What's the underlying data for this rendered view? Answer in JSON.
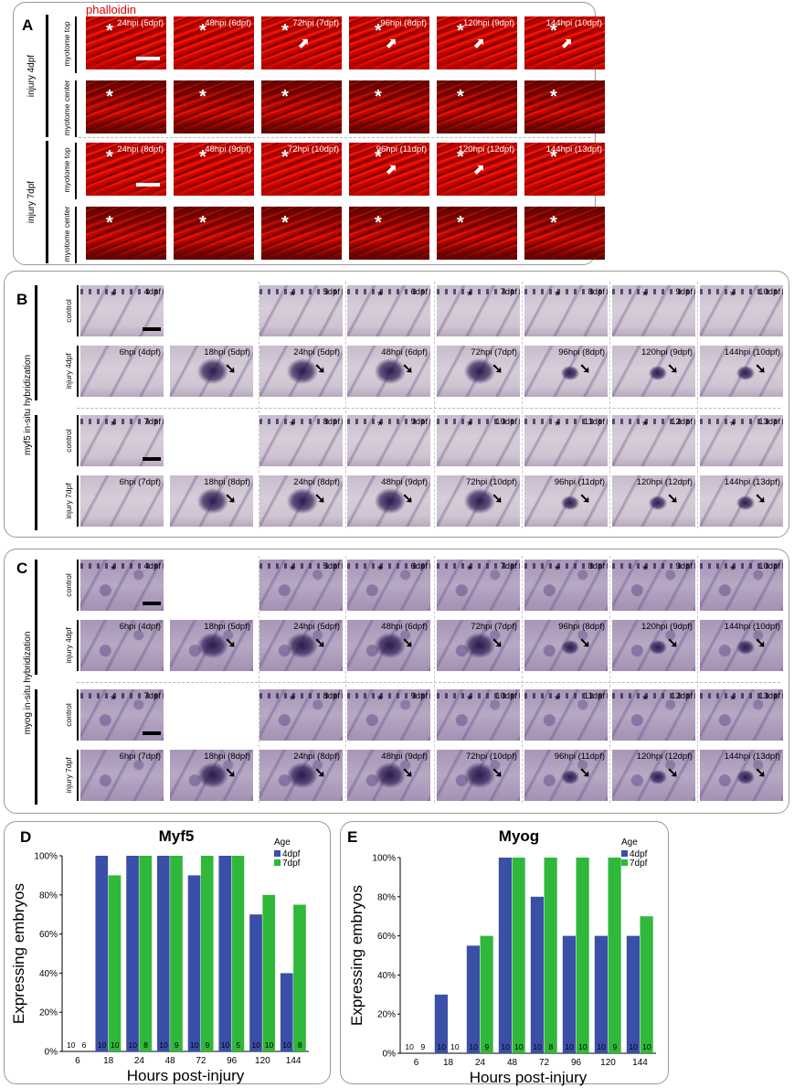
{
  "panel_a": {
    "letter": "A",
    "stain": "phalloidin",
    "stain_color": "#e00000",
    "groups": [
      {
        "label": "injury 4dpf",
        "rows": [
          {
            "label": "myotome top",
            "tiles": [
              "24hpi (5dpf)",
              "48hpi (6dpf)",
              "72hpi (7dpf)",
              "96hpi (8dpf)",
              "120hpi (9dpf)",
              "144hpi (10dpf)"
            ]
          },
          {
            "label": "myotome center",
            "tiles": [
              "",
              "",
              "",
              "",
              "",
              ""
            ]
          }
        ]
      },
      {
        "label": "injury 7dpf",
        "rows": [
          {
            "label": "myotome top",
            "tiles": [
              "24hpi (8dpf)",
              "48hpi (9dpf)",
              "72hpi (10dpf)",
              "96hpi (11dpf)",
              "120hpi (12dpf)",
              "144hpi (13dpf)"
            ]
          },
          {
            "label": "myotome center",
            "tiles": [
              "",
              "",
              "",
              "",
              "",
              ""
            ]
          }
        ]
      }
    ]
  },
  "panel_b": {
    "letter": "B",
    "side_label": "myf5 in-situ hybridization",
    "rows": [
      {
        "label": "control",
        "tiles": [
          "4dpf",
          null,
          "5dpf",
          "6dpf",
          "7dpf",
          "8dpf",
          "9dpf",
          "10dpf"
        ]
      },
      {
        "label": "injury 4dpf",
        "tiles": [
          "6hpi (4dpf)",
          "18hpi (5dpf)",
          "24hpi (5dpf)",
          "48hpi (6dpf)",
          "72hpi (7dpf)",
          "96hpi (8dpf)",
          "120hpi (9dpf)",
          "144hpi (10dpf)"
        ]
      },
      {
        "label": "control",
        "tiles": [
          "7dpf",
          null,
          "8dpf",
          "9dpf",
          "10dpf",
          "11dpf",
          "12dpf",
          "13dpf"
        ]
      },
      {
        "label": "injury 7dpf",
        "tiles": [
          "6hpi (7dpf)",
          "18hpi (8dpf)",
          "24hpi (8dpf)",
          "48hpi (9dpf)",
          "72hpi (10dpf)",
          "96hpi (11dpf)",
          "120hpi (12dpf)",
          "144hpi (13dpf)"
        ]
      }
    ]
  },
  "panel_c": {
    "letter": "C",
    "side_label": "myog in-situ hybridization",
    "rows": [
      {
        "label": "control",
        "tiles": [
          "4dpf",
          null,
          "5dpf",
          "6dpf",
          "7dpf",
          "8dpf",
          "9dpf",
          "10dpf"
        ]
      },
      {
        "label": "injury 4dpf",
        "tiles": [
          "6hpi (4dpf)",
          "18hpi (5dpf)",
          "24hpi (5dpf)",
          "48hpi (6dpf)",
          "72hpi (7dpf)",
          "96hpi (8dpf)",
          "120hpi (9dpf)",
          "144hpi (10dpf)"
        ]
      },
      {
        "label": "control",
        "tiles": [
          "7dpf",
          null,
          "8dpf",
          "9dpf",
          "10dpf",
          "11dpf",
          "12dpf",
          "13dpf"
        ]
      },
      {
        "label": "injury 7dpf",
        "tiles": [
          "6hpi (7dpf)",
          "18hpi (8dpf)",
          "24hpi (8dpf)",
          "48hpi (9dpf)",
          "72hpi (10dpf)",
          "96hpi (11dpf)",
          "120hpi (12dpf)",
          "144hpi (13dpf)"
        ]
      }
    ]
  },
  "colors": {
    "series_4dpf": "#3a4fa8",
    "series_7dpf": "#2fb83a"
  },
  "chart_data": [
    {
      "panel": "D",
      "type": "bar",
      "title": "Myf5",
      "xlabel": "Hours post-injury",
      "ylabel": "Expressing embryos",
      "legend_title": "Age",
      "legend_position": "top-right",
      "categories": [
        "6",
        "18",
        "24",
        "48",
        "72",
        "96",
        "120",
        "144"
      ],
      "yticks": [
        "0%",
        "20%",
        "40%",
        "60%",
        "80%",
        "100%"
      ],
      "ylim": [
        0,
        100
      ],
      "series": [
        {
          "name": "4dpf",
          "values": [
            0,
            100,
            100,
            100,
            90,
            100,
            70,
            40
          ],
          "n": [
            "10",
            "10",
            "10",
            "10",
            "10",
            "10",
            "10",
            "10"
          ]
        },
        {
          "name": "7dpf",
          "values": [
            0,
            90,
            100,
            100,
            100,
            100,
            80,
            75
          ],
          "n": [
            "6",
            "10",
            "8",
            "9",
            "9",
            "5",
            "10",
            "8"
          ]
        }
      ]
    },
    {
      "panel": "E",
      "type": "bar",
      "title": "Myog",
      "xlabel": "Hours post-injury",
      "ylabel": "Expressing embryos",
      "legend_title": "Age",
      "legend_position": "top-right",
      "categories": [
        "6",
        "18",
        "24",
        "48",
        "72",
        "96",
        "120",
        "144"
      ],
      "yticks": [
        "0%",
        "20%",
        "40%",
        "60%",
        "80%",
        "100%"
      ],
      "ylim": [
        0,
        100
      ],
      "series": [
        {
          "name": "4dpf",
          "values": [
            0,
            30,
            55,
            100,
            80,
            60,
            60,
            60
          ],
          "n": [
            "10",
            "10",
            "10",
            "10",
            "10",
            "10",
            "10",
            "10"
          ]
        },
        {
          "name": "7dpf",
          "values": [
            0,
            0,
            60,
            100,
            100,
            100,
            100,
            70
          ],
          "n": [
            "9",
            "10",
            "9",
            "10",
            "8",
            "10",
            "9",
            "10"
          ]
        }
      ]
    }
  ]
}
